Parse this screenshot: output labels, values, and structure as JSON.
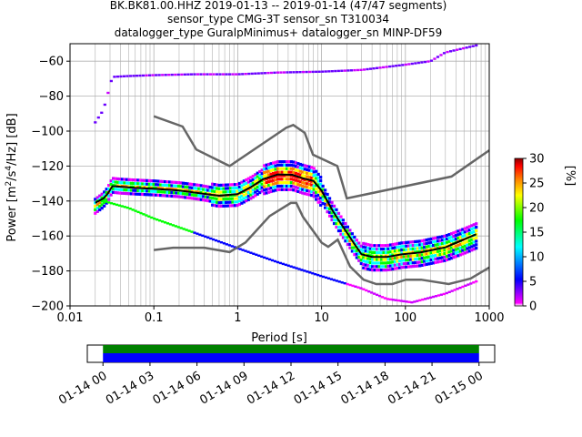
{
  "chart_data": {
    "type": "heatmap",
    "title_lines": [
      "BK.BK81.00.HHZ   2019-01-13 -- 2019-01-14  (47/47 segments)",
      "sensor_type CMG-3T sensor_sn T310034",
      "datalogger_type GuralpMinimus+ datalogger_sn MINP-DF59"
    ],
    "xlabel": "Period [s]",
    "ylabel_html": "Power [m²/s⁴/Hz] [dB]",
    "ylabel_parts": [
      "Power [m",
      "2",
      "/s",
      "4",
      "/Hz] [dB]"
    ],
    "x_scale": "log",
    "xlim": [
      0.01,
      1000
    ],
    "ylim": [
      -200,
      -50
    ],
    "x_ticks": [
      0.01,
      0.1,
      1,
      10,
      100,
      1000
    ],
    "x_tick_labels": [
      "0.01",
      "0.1",
      "1",
      "10",
      "100",
      "1000"
    ],
    "y_ticks": [
      -200,
      -180,
      -160,
      -140,
      -120,
      -100,
      -80,
      -60
    ],
    "y_tick_labels": [
      "−200",
      "−180",
      "−160",
      "−140",
      "−120",
      "−100",
      "−80",
      "−60"
    ],
    "grid": true,
    "colorbar": {
      "label": "[%]",
      "range": [
        0,
        30
      ],
      "ticks": [
        0,
        5,
        10,
        15,
        20,
        25,
        30
      ],
      "tick_labels": [
        "0",
        "5",
        "10",
        "15",
        "20",
        "25",
        "30"
      ],
      "colors": [
        "#ffffff",
        "#ff00ff",
        "#0000ff",
        "#00ffff",
        "#00ff00",
        "#ffff00",
        "#ff7f00",
        "#ff0000",
        "#880000"
      ]
    },
    "nlnm": [
      [
        0.1,
        -168
      ],
      [
        0.17,
        -166.7
      ],
      [
        0.4,
        -166.7
      ],
      [
        0.8,
        -169.2
      ],
      [
        1.24,
        -163.7
      ],
      [
        2.4,
        -148.6
      ],
      [
        4.3,
        -141.1
      ],
      [
        5,
        -141.1
      ],
      [
        6,
        -149
      ],
      [
        10,
        -163.8
      ],
      [
        12,
        -166.2
      ],
      [
        15.6,
        -162.1
      ],
      [
        21.9,
        -177.5
      ],
      [
        31.6,
        -185
      ],
      [
        45,
        -187.5
      ],
      [
        70,
        -187.5
      ],
      [
        101,
        -185
      ],
      [
        154,
        -185
      ],
      [
        328,
        -187.5
      ],
      [
        600,
        -184.4
      ],
      [
        1000,
        -178
      ]
    ],
    "nhnm": [
      [
        0.1,
        -91.5
      ],
      [
        0.22,
        -97.4
      ],
      [
        0.32,
        -110.5
      ],
      [
        0.8,
        -120
      ],
      [
        3.8,
        -98
      ],
      [
        4.6,
        -96.5
      ],
      [
        6.3,
        -101
      ],
      [
        7.9,
        -113.5
      ],
      [
        15.4,
        -120
      ],
      [
        20,
        -138.5
      ],
      [
        354.8,
        -126
      ],
      [
        1000,
        -111
      ]
    ],
    "mode": [
      [
        0.02,
        -143
      ],
      [
        0.025,
        -139.5
      ],
      [
        0.028,
        -136.5
      ],
      [
        0.032,
        -131
      ],
      [
        0.04,
        -131.5
      ],
      [
        0.06,
        -132
      ],
      [
        0.1,
        -132.5
      ],
      [
        0.2,
        -133.5
      ],
      [
        0.35,
        -135
      ],
      [
        0.6,
        -137
      ],
      [
        1,
        -136.5
      ],
      [
        1.5,
        -132
      ],
      [
        2,
        -128
      ],
      [
        3,
        -125.5
      ],
      [
        4.5,
        -125.5
      ],
      [
        6,
        -127.5
      ],
      [
        8,
        -129
      ],
      [
        10,
        -135
      ],
      [
        13,
        -145
      ],
      [
        16,
        -152
      ],
      [
        20,
        -159
      ],
      [
        25,
        -166
      ],
      [
        30,
        -171
      ],
      [
        40,
        -172.5
      ],
      [
        60,
        -172.5
      ],
      [
        90,
        -171
      ],
      [
        150,
        -170
      ],
      [
        300,
        -167
      ],
      [
        500,
        -163
      ],
      [
        700,
        -160
      ]
    ],
    "mean_curve": [
      [
        0.02,
        -141
      ],
      [
        0.025,
        -138.5
      ],
      [
        0.028,
        -136
      ],
      [
        0.032,
        -131.5
      ],
      [
        0.04,
        -131.8
      ],
      [
        0.06,
        -132.5
      ],
      [
        0.1,
        -133
      ],
      [
        0.2,
        -134
      ],
      [
        0.35,
        -135.5
      ],
      [
        0.6,
        -137
      ],
      [
        1,
        -136
      ],
      [
        1.5,
        -131.5
      ],
      [
        2,
        -127.5
      ],
      [
        3,
        -124.8
      ],
      [
        4.5,
        -125
      ],
      [
        6,
        -127
      ],
      [
        8,
        -128.5
      ],
      [
        10,
        -134
      ],
      [
        13,
        -144
      ],
      [
        16,
        -151
      ],
      [
        20,
        -158
      ],
      [
        25,
        -165
      ],
      [
        30,
        -170.5
      ],
      [
        40,
        -172
      ],
      [
        60,
        -172
      ],
      [
        90,
        -170.5
      ],
      [
        150,
        -169.5
      ],
      [
        300,
        -166.5
      ],
      [
        500,
        -162
      ],
      [
        700,
        -159
      ]
    ],
    "coverage": {
      "tick_labels": [
        "01-14 00",
        "01-14 03",
        "01-14 06",
        "01-14 09",
        "01-14 12",
        "01-14 15",
        "01-14 18",
        "01-14 21",
        "01-15 00"
      ],
      "range_hours": [
        -1,
        25
      ],
      "available": [
        0,
        24
      ],
      "colors": {
        "available": "#008000",
        "used": "#0000ff"
      }
    }
  }
}
